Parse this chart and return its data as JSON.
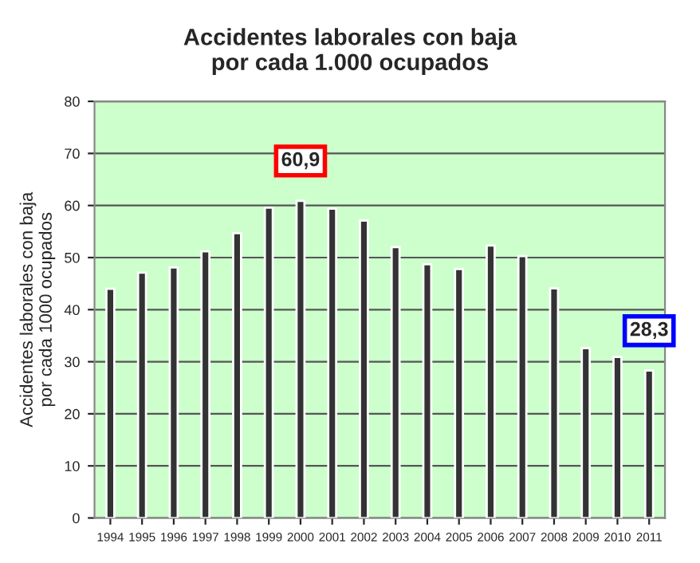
{
  "chart_data": {
    "type": "bar",
    "title": "Accidentes laborales con baja\npor cada 1.000 ocupados",
    "ylabel": "Accidentes laborales con baja\npor cada 1000 ocupados",
    "categories": [
      "1994",
      "1995",
      "1996",
      "1997",
      "1998",
      "1999",
      "2000",
      "2001",
      "2002",
      "2003",
      "2004",
      "2005",
      "2006",
      "2007",
      "2008",
      "2009",
      "2010",
      "2011"
    ],
    "values": [
      44.0,
      47.1,
      48.1,
      51.2,
      54.7,
      59.6,
      60.9,
      59.4,
      57.1,
      52.0,
      48.7,
      47.8,
      52.3,
      50.3,
      44.1,
      32.6,
      30.9,
      28.3
    ],
    "value_labels": [
      null,
      null,
      null,
      null,
      null,
      null,
      "60,9",
      null,
      null,
      null,
      null,
      null,
      null,
      null,
      null,
      null,
      null,
      "28,3"
    ],
    "color": "#333333",
    "ylim": [
      0,
      80
    ],
    "yticks": [
      0,
      10,
      20,
      30,
      40,
      50,
      60,
      70,
      80
    ],
    "grid": "y",
    "legend": false
  }
}
